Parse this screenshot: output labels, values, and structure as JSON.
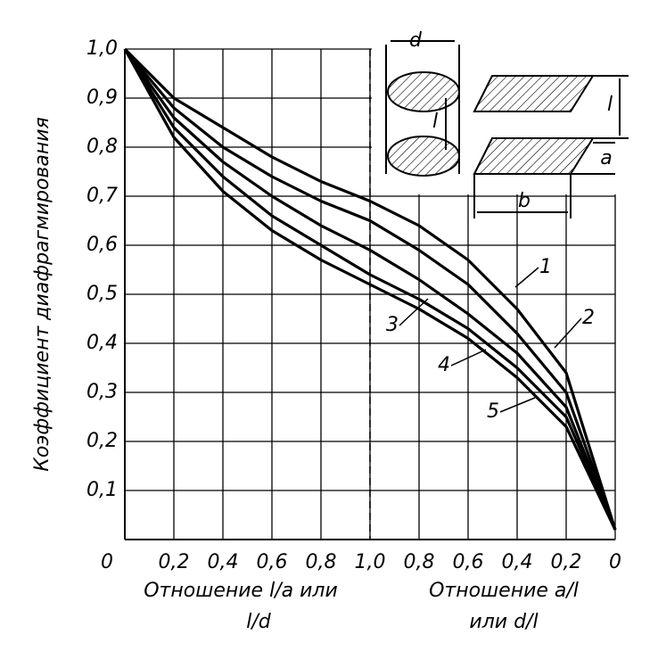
{
  "chart_data": {
    "type": "line",
    "ylabel": "Коэффициент диафрагмирования",
    "xlabel_left": [
      "Отношение l/a или",
      "l/d"
    ],
    "xlabel_right": [
      "Отношение a/l",
      "или d/l"
    ],
    "inset_labels": [
      "d",
      "l",
      "l",
      "a",
      "b"
    ],
    "x": [
      0,
      0.2,
      0.4,
      0.6,
      0.8,
      1.0,
      1.2,
      1.4,
      1.6,
      1.8,
      2.0
    ],
    "series": [
      {
        "name": "1",
        "color": "#000000",
        "values": [
          1.0,
          0.9,
          0.84,
          0.78,
          0.73,
          0.69,
          0.64,
          0.57,
          0.47,
          0.34,
          0.02
        ]
      },
      {
        "name": "2",
        "color": "#000000",
        "values": [
          1.0,
          0.88,
          0.8,
          0.74,
          0.69,
          0.65,
          0.59,
          0.52,
          0.42,
          0.3,
          0.02
        ]
      },
      {
        "name": "3",
        "color": "#000000",
        "values": [
          1.0,
          0.86,
          0.77,
          0.7,
          0.64,
          0.59,
          0.53,
          0.46,
          0.38,
          0.27,
          0.02
        ]
      },
      {
        "name": "4",
        "color": "#000000",
        "values": [
          1.0,
          0.84,
          0.74,
          0.66,
          0.6,
          0.54,
          0.49,
          0.43,
          0.35,
          0.25,
          0.02
        ]
      },
      {
        "name": "5",
        "color": "#000000",
        "values": [
          1.0,
          0.82,
          0.71,
          0.63,
          0.57,
          0.52,
          0.47,
          0.41,
          0.33,
          0.23,
          0.02
        ]
      }
    ],
    "xlim": [
      0,
      2.0
    ],
    "xticks": [
      0,
      {
        "value": 0.2,
        "label": "0,2"
      },
      {
        "value": 0.4,
        "label": "0,4"
      },
      {
        "value": 0.6,
        "label": "0,6"
      },
      {
        "value": 0.8,
        "label": "0,8"
      },
      {
        "value": 1.0,
        "label": "1,0"
      },
      {
        "value": 1.2,
        "label": "0,8"
      },
      {
        "value": 1.4,
        "label": "0,6"
      },
      {
        "value": 1.6,
        "label": "0,4"
      },
      {
        "value": 1.8,
        "label": "0,2"
      },
      {
        "value": 2.0,
        "label": "0"
      }
    ],
    "ylim": [
      0,
      1.0
    ],
    "yticks": [
      {
        "value": 0.1,
        "label": "0,1"
      },
      {
        "value": 0.2,
        "label": "0,2"
      },
      {
        "value": 0.3,
        "label": "0,3"
      },
      {
        "value": 0.4,
        "label": "0,4"
      },
      {
        "value": 0.5,
        "label": "0,5"
      },
      {
        "value": 0.6,
        "label": "0,6"
      },
      {
        "value": 0.7,
        "label": "0,7"
      },
      {
        "value": 0.8,
        "label": "0,8"
      },
      {
        "value": 0.9,
        "label": "0,9"
      },
      {
        "value": 1.0,
        "label": "1,0"
      }
    ],
    "grid": true
  }
}
